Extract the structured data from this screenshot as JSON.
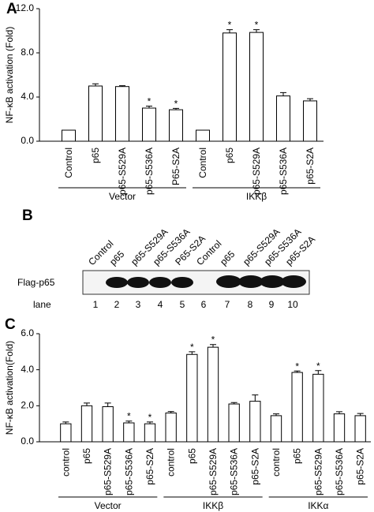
{
  "chart_data": [
    {
      "type": "bar",
      "panel": "A",
      "y_label": "NF-κB activation (Fold)",
      "categories": [
        "Control",
        "p65",
        "p65-S529A",
        "p65-S536A",
        "P65-S2A",
        "Control",
        "p65",
        "p65-S529A",
        "p65-S536A",
        "p65-S2A"
      ],
      "values": [
        1.0,
        5.0,
        4.95,
        3.0,
        2.85,
        1.0,
        9.8,
        9.85,
        4.1,
        3.65
      ],
      "errors": [
        0.0,
        0.2,
        0.08,
        0.18,
        0.12,
        0.0,
        0.3,
        0.25,
        0.3,
        0.2
      ],
      "markers": [
        null,
        null,
        null,
        "*",
        "*",
        null,
        "*",
        "*",
        null,
        null
      ],
      "groups": [
        "Vector",
        "IKKβ"
      ],
      "color": "#ffffff",
      "ylim": [
        0,
        12
      ],
      "yticks": [
        {
          "value": 0,
          "label": "0.0"
        },
        {
          "value": 4,
          "label": "4.0"
        },
        {
          "value": 8,
          "label": "8.0"
        },
        {
          "value": 12,
          "label": "12.0"
        }
      ]
    },
    {
      "type": "bar",
      "panel": "C",
      "y_label": "NF-κB activation(Fold)",
      "categories": [
        "control",
        "p65",
        "p65-S529A",
        "p65-S536A",
        "p65-S2A",
        "control",
        "p65",
        "p65-S529A",
        "p65-S536A",
        "p65-S2A",
        "control",
        "p65",
        "p65-S529A",
        "p65-S536A",
        "p65-S2A"
      ],
      "values": [
        1.0,
        2.0,
        1.95,
        1.05,
        1.0,
        1.6,
        4.85,
        5.25,
        2.1,
        2.25,
        1.45,
        3.85,
        3.75,
        1.55,
        1.45
      ],
      "errors": [
        0.1,
        0.15,
        0.2,
        0.1,
        0.1,
        0.08,
        0.15,
        0.15,
        0.08,
        0.35,
        0.1,
        0.08,
        0.2,
        0.12,
        0.12
      ],
      "markers": [
        null,
        null,
        null,
        "*",
        "*",
        null,
        "*",
        "*",
        null,
        null,
        null,
        "*",
        "*",
        null,
        null
      ],
      "groups": [
        "Vector",
        "IKKβ",
        "IKKα"
      ],
      "color": "#ffffff",
      "ylim": [
        0,
        6
      ],
      "yticks": [
        {
          "value": 0,
          "label": "0.0"
        },
        {
          "value": 2,
          "label": "2.0"
        },
        {
          "value": 4,
          "label": "4.0"
        },
        {
          "value": 6,
          "label": "6.0"
        }
      ]
    }
  ],
  "blot": {
    "panel": "B",
    "lane_labels": [
      "Control",
      "p65",
      "p65-S529A",
      "p65-S536A",
      "P65-S2A",
      "Control",
      "p65",
      "p65-S529A",
      "p65-S536A",
      "p65-S2A"
    ],
    "band_label": "Flag-p65",
    "lane_label": "lane",
    "lane_numbers": [
      1,
      2,
      3,
      4,
      5,
      6,
      7,
      8,
      9,
      10
    ]
  }
}
